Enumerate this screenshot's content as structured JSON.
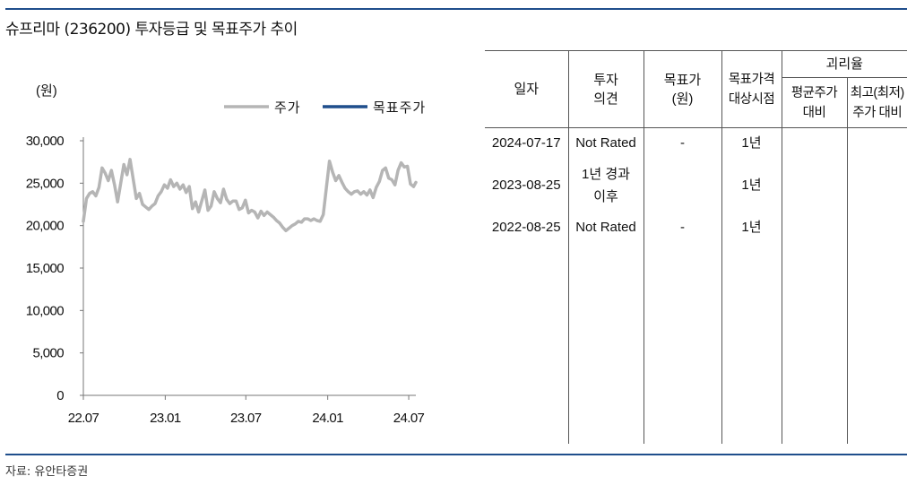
{
  "title": "슈프리마 (236200) 투자등급 및 목표주가 추이",
  "source": "자료: 유안타증권",
  "chart_data": {
    "type": "line",
    "unit_label": "(원)",
    "x_ticks": [
      "22.07",
      "23.01",
      "23.07",
      "24.01",
      "24.07"
    ],
    "y_ticks": [
      "0",
      "5,000",
      "10,000",
      "15,000",
      "20,000",
      "25,000",
      "30,000"
    ],
    "ylim": [
      0,
      30000
    ],
    "x_range": [
      "2022-07",
      "2024-07"
    ],
    "legend_position": "top-right",
    "series": [
      {
        "name": "주가",
        "color": "#b5b5b5",
        "x": [
          "2022-07-01",
          "2022-07-08",
          "2022-07-15",
          "2022-07-22",
          "2022-07-29",
          "2022-08-05",
          "2022-08-12",
          "2022-08-19",
          "2022-08-26",
          "2022-09-02",
          "2022-09-09",
          "2022-09-16",
          "2022-09-23",
          "2022-09-30",
          "2022-10-07",
          "2022-10-14",
          "2022-10-21",
          "2022-10-28",
          "2022-11-04",
          "2022-11-11",
          "2022-11-18",
          "2022-11-25",
          "2022-12-02",
          "2022-12-09",
          "2022-12-16",
          "2022-12-23",
          "2022-12-30",
          "2023-01-06",
          "2023-01-13",
          "2023-01-20",
          "2023-01-27",
          "2023-02-03",
          "2023-02-10",
          "2023-02-17",
          "2023-02-24",
          "2023-03-03",
          "2023-03-10",
          "2023-03-17",
          "2023-03-24",
          "2023-03-31",
          "2023-04-07",
          "2023-04-14",
          "2023-04-21",
          "2023-04-28",
          "2023-05-05",
          "2023-05-12",
          "2023-05-19",
          "2023-05-26",
          "2023-06-02",
          "2023-06-09",
          "2023-06-16",
          "2023-06-23",
          "2023-06-30",
          "2023-07-07",
          "2023-07-14",
          "2023-07-21",
          "2023-07-28",
          "2023-08-04",
          "2023-08-11",
          "2023-08-18",
          "2023-08-25",
          "2023-09-01",
          "2023-09-08",
          "2023-09-15",
          "2023-09-22",
          "2023-09-29",
          "2023-10-06",
          "2023-10-13",
          "2023-10-20",
          "2023-10-27",
          "2023-11-03",
          "2023-11-10",
          "2023-11-17",
          "2023-11-24",
          "2023-12-01",
          "2023-12-08",
          "2023-12-15",
          "2023-12-22",
          "2023-12-29",
          "2024-01-05",
          "2024-01-12",
          "2024-01-19",
          "2024-01-26",
          "2024-02-02",
          "2024-02-09",
          "2024-02-16",
          "2024-02-23",
          "2024-03-01",
          "2024-03-08",
          "2024-03-15",
          "2024-03-22",
          "2024-03-29",
          "2024-04-05",
          "2024-04-12",
          "2024-04-19",
          "2024-04-26",
          "2024-05-03",
          "2024-05-10",
          "2024-05-17",
          "2024-05-24",
          "2024-05-31",
          "2024-06-07",
          "2024-06-14",
          "2024-06-21",
          "2024-06-28",
          "2024-07-05",
          "2024-07-12",
          "2024-07-17"
        ],
        "y": [
          20500,
          23200,
          23800,
          24000,
          23500,
          24500,
          26800,
          26200,
          25300,
          26500,
          24800,
          22800,
          25000,
          27200,
          26000,
          27800,
          25500,
          23200,
          23800,
          22500,
          22200,
          21900,
          22300,
          22600,
          23500,
          24000,
          24800,
          24400,
          25400,
          24600,
          25000,
          24300,
          24800,
          23900,
          24600,
          22000,
          22800,
          21600,
          22900,
          24200,
          21800,
          22300,
          24000,
          23200,
          22700,
          24300,
          23100,
          22600,
          22900,
          22900,
          21900,
          22100,
          23000,
          21500,
          21800,
          21600,
          20900,
          21700,
          21200,
          21600,
          21300,
          21000,
          20600,
          20300,
          19800,
          19400,
          19700,
          20000,
          20200,
          20500,
          20400,
          20800,
          20800,
          20600,
          20800,
          20600,
          20500,
          21300,
          24500,
          27600,
          26300,
          25300,
          25900,
          25100,
          24400,
          24000,
          23700,
          24000,
          24100,
          23700,
          24000,
          23600,
          24200,
          23300,
          24500,
          25200,
          26500,
          26800,
          25600,
          25400,
          24800,
          26500,
          27400,
          26900,
          27000,
          24900,
          24600,
          25100
        ]
      },
      {
        "name": "목표주가",
        "color": "#1f4e8c",
        "x": [],
        "y": []
      }
    ]
  },
  "table": {
    "headers": {
      "date": "일자",
      "opinion": [
        "투자",
        "의견"
      ],
      "target": [
        "목표가",
        "(원)"
      ],
      "horizon": [
        "목표가격",
        "대상시점"
      ],
      "group": "괴리율",
      "avg": [
        "평균주가",
        "대비"
      ],
      "peak": [
        "최고(최저)",
        "주가 대비"
      ]
    },
    "rows": [
      {
        "date": "2024-07-17",
        "opinion": "Not Rated",
        "target": "-",
        "horizon": "1년",
        "avg": "",
        "peak": ""
      },
      {
        "date": "2023-08-25",
        "opinion": "1년 경과 이후",
        "target": "",
        "horizon": "1년",
        "avg": "",
        "peak": ""
      },
      {
        "date": "2022-08-25",
        "opinion": "Not Rated",
        "target": "-",
        "horizon": "1년",
        "avg": "",
        "peak": ""
      }
    ]
  }
}
